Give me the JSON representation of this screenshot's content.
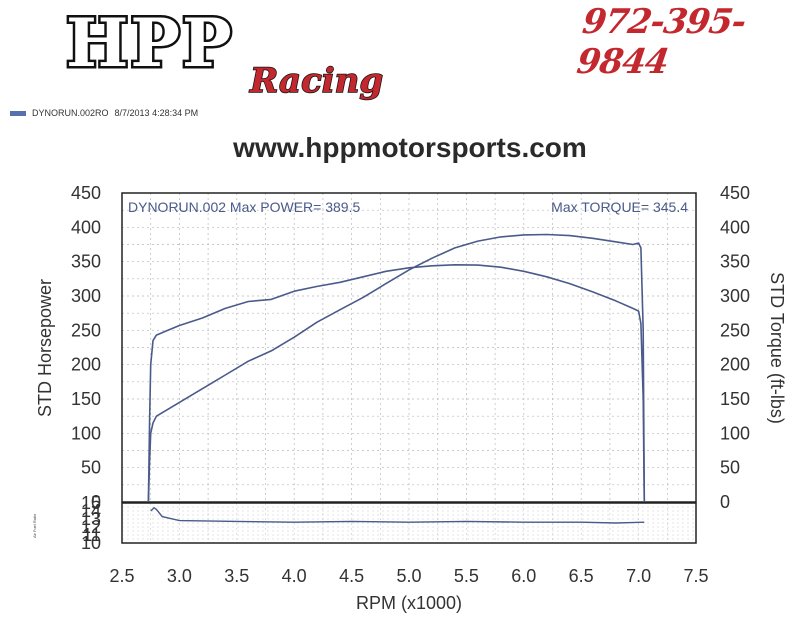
{
  "header": {
    "logo_main": "HPP",
    "logo_sub": "Racing",
    "phone": "972-395-9844",
    "legend_run": "DYNORUN.002RO",
    "legend_date": "8/7/2013 4:28:34 PM",
    "website": "www.hppmotorsports.com"
  },
  "colors": {
    "curve": "#4a5a8a",
    "logo_red": "#c2282d",
    "legend_swatch": "#5a6fb0"
  },
  "chart_data": {
    "type": "line",
    "header_left": "DYNORUN.002  Max POWER= 389.5",
    "header_right": "Max TORQUE= 345.4",
    "xlabel": "RPM (x1000)",
    "ylabel": "STD Horsepower",
    "y2label": "STD Torque (ft-lbs)",
    "xlim": [
      2.5,
      7.5
    ],
    "ylim": [
      0,
      450
    ],
    "x_ticks": [
      "2.5",
      "3.0",
      "3.5",
      "4.0",
      "4.5",
      "5.0",
      "5.5",
      "6.0",
      "6.5",
      "7.0",
      "7.5"
    ],
    "y_ticks": [
      "0",
      "50",
      "100",
      "150",
      "200",
      "250",
      "300",
      "350",
      "400",
      "450"
    ],
    "y2_ticks": [
      "0",
      "50",
      "100",
      "150",
      "200",
      "250",
      "300",
      "350",
      "400",
      "450"
    ],
    "sub_ylabel": "Air Fuel Ratio",
    "sub_ylim": [
      10,
      15
    ],
    "sub_ticks": [
      "10",
      "11",
      "12",
      "13",
      "14",
      "15"
    ],
    "grid": true,
    "series": [
      {
        "x": [
          2.73,
          2.74,
          2.75,
          2.77,
          2.8,
          2.9,
          3.0,
          3.2,
          3.4,
          3.6,
          3.8,
          4.0,
          4.2,
          4.4,
          4.6,
          4.8,
          5.0,
          5.2,
          5.4,
          5.6,
          5.8,
          6.0,
          6.2,
          6.4,
          6.6,
          6.8,
          6.95,
          7.0,
          7.02,
          7.04,
          7.05
        ],
        "values": [
          0,
          60,
          100,
          115,
          125,
          135,
          145,
          165,
          185,
          205,
          220,
          240,
          262,
          280,
          298,
          318,
          338,
          355,
          370,
          380,
          386,
          389,
          389.5,
          388,
          384,
          379,
          375,
          377,
          370,
          250,
          0
        ]
      },
      {
        "x": [
          2.73,
          2.74,
          2.75,
          2.77,
          2.8,
          2.9,
          3.0,
          3.2,
          3.4,
          3.6,
          3.8,
          4.0,
          4.2,
          4.4,
          4.6,
          4.8,
          5.0,
          5.2,
          5.4,
          5.6,
          5.8,
          6.0,
          6.2,
          6.4,
          6.6,
          6.8,
          6.95,
          7.0,
          7.02,
          7.04,
          7.05
        ],
        "values": [
          0,
          120,
          200,
          235,
          243,
          250,
          257,
          268,
          282,
          292,
          295,
          307,
          314,
          320,
          328,
          336,
          341,
          344,
          345.4,
          345,
          342,
          336,
          328,
          318,
          306,
          293,
          282,
          278,
          260,
          150,
          0
        ]
      }
    ],
    "sub_series": {
      "x": [
        2.75,
        2.78,
        2.8,
        2.85,
        3.0,
        3.5,
        4.0,
        4.5,
        5.0,
        5.5,
        6.0,
        6.5,
        6.8,
        7.05
      ],
      "values": [
        14.0,
        14.4,
        14.2,
        13.3,
        12.8,
        12.7,
        12.6,
        12.7,
        12.6,
        12.7,
        12.6,
        12.6,
        12.5,
        12.6
      ]
    }
  }
}
